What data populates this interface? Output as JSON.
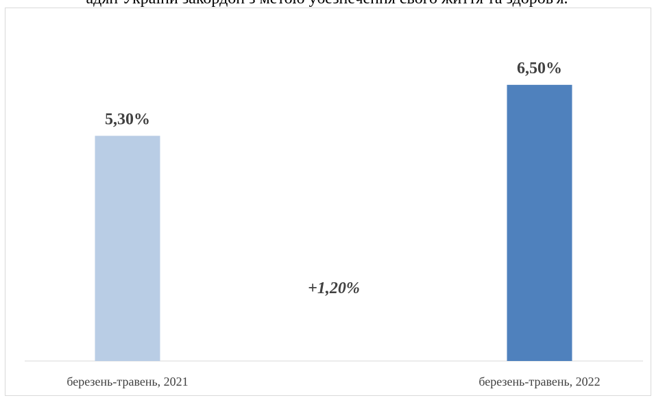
{
  "heading_fragment": "адян України закордон з метою убезпечення свого життя та здоров'я.",
  "chart_data": {
    "type": "bar",
    "categories": [
      "березень-травень, 2021",
      "березень-травень, 2022"
    ],
    "values": [
      5.3,
      6.5
    ],
    "value_labels": [
      "5,30%",
      "6,50%"
    ],
    "annotations": [
      "+1,20%"
    ],
    "colors": [
      "#b9cde5",
      "#4f81bd"
    ],
    "ylim": [
      0,
      8.4
    ],
    "grid": false,
    "legend": "none"
  }
}
